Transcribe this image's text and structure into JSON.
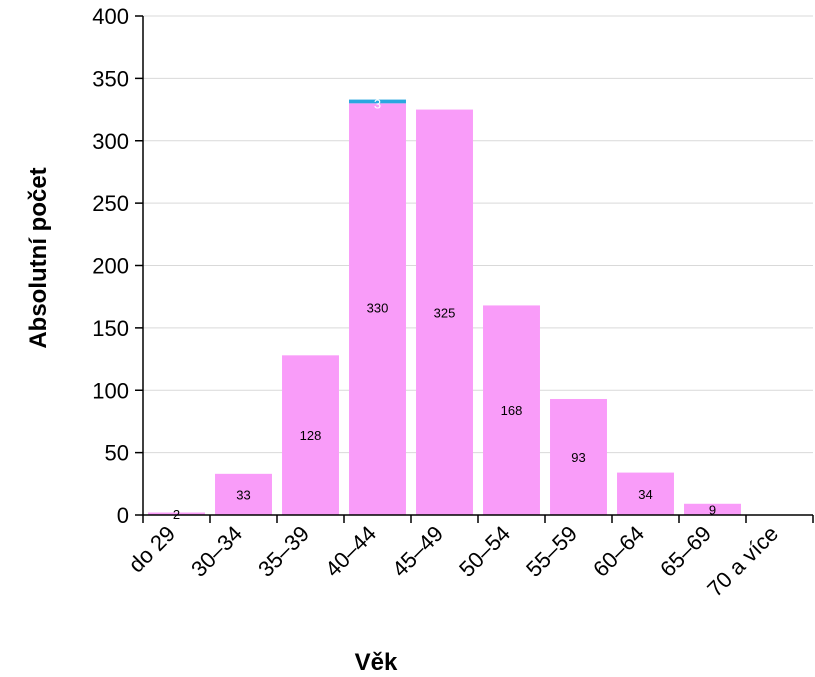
{
  "chart_data": {
    "type": "bar",
    "title": "",
    "xlabel": "Věk",
    "ylabel": "Absolutní počet",
    "categories": [
      "do 29",
      "30–34",
      "35–39",
      "40–44",
      "45–49",
      "50–54",
      "55–59",
      "60–64",
      "65–69",
      "70 a více"
    ],
    "series": [
      {
        "color": "#f99cf9",
        "values": [
          2,
          33,
          128,
          330,
          325,
          168,
          93,
          34,
          9,
          0
        ],
        "labels": [
          "2",
          "33",
          "128",
          "330",
          "325",
          "168",
          "93",
          "34",
          "9",
          ""
        ]
      },
      {
        "color": "#2aa7e0",
        "values": [
          0,
          0,
          0,
          3,
          0,
          0,
          0,
          0,
          0,
          0
        ],
        "labels": [
          "",
          "",
          "",
          "3",
          "",
          "",
          "",
          "",
          "",
          ""
        ]
      }
    ],
    "ylim": [
      0,
      400
    ],
    "yticks": [
      0,
      50,
      100,
      150,
      200,
      250,
      300,
      350,
      400
    ],
    "grid": true,
    "stacked": true,
    "legend": "none",
    "colors": {
      "grid": "#d9d9d9",
      "axis": "#000000",
      "background": "#ffffff"
    }
  }
}
